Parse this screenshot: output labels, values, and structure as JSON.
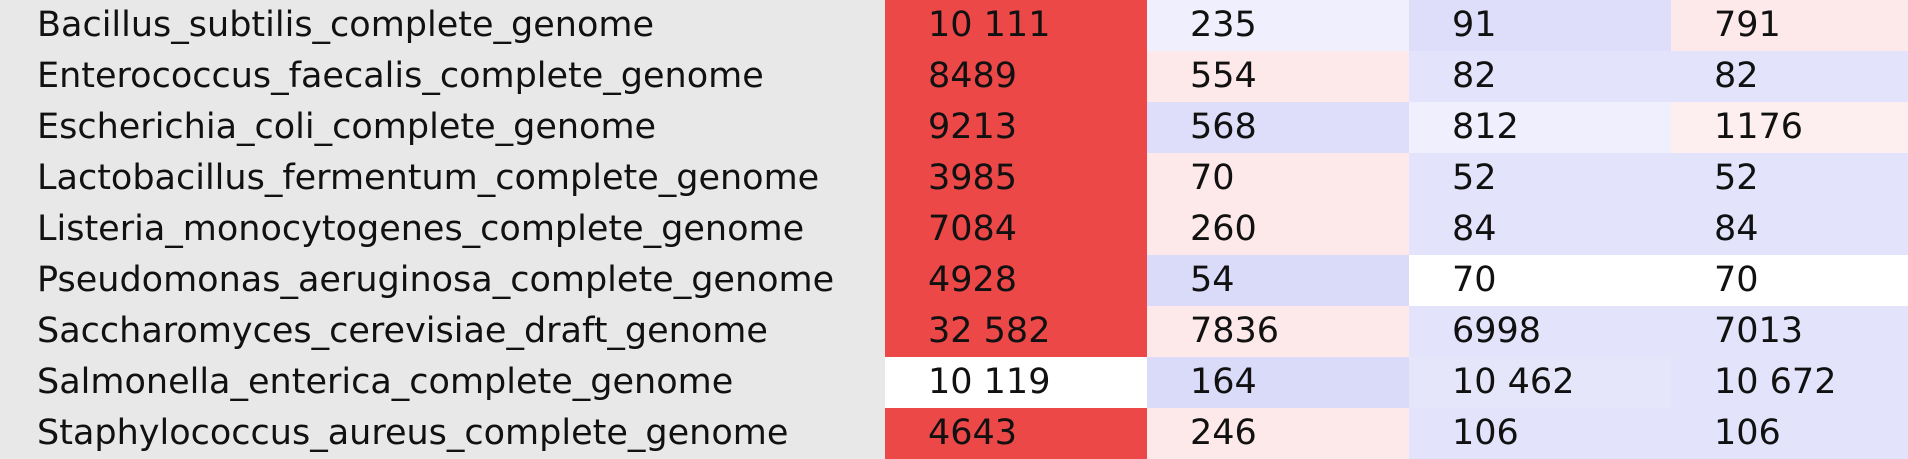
{
  "chart_data": {
    "type": "heatmap",
    "rows": [
      "Bacillus_subtilis_complete_genome",
      "Enterococcus_faecalis_complete_genome",
      "Escherichia_coli_complete_genome",
      "Lactobacillus_fermentum_complete_genome",
      "Listeria_monocytogenes_complete_genome",
      "Pseudomonas_aeruginosa_complete_genome",
      "Saccharomyces_cerevisiae_draft_genome",
      "Salmonella_enterica_complete_genome",
      "Staphylococcus_aureus_complete_genome"
    ],
    "values": [
      [
        10111,
        235,
        91,
        791
      ],
      [
        8489,
        554,
        82,
        82
      ],
      [
        9213,
        568,
        812,
        1176
      ],
      [
        3985,
        70,
        52,
        52
      ],
      [
        7084,
        260,
        84,
        84
      ],
      [
        4928,
        54,
        70,
        70
      ],
      [
        32582,
        7836,
        6998,
        7013
      ],
      [
        10119,
        164,
        10462,
        10672
      ],
      [
        4643,
        246,
        106,
        106
      ]
    ],
    "display_values": [
      [
        "10 111",
        "235",
        "91",
        "791"
      ],
      [
        "8489",
        "554",
        "82",
        "82"
      ],
      [
        "9213",
        "568",
        "812",
        "1176"
      ],
      [
        "3985",
        "70",
        "52",
        "52"
      ],
      [
        "7084",
        "260",
        "84",
        "84"
      ],
      [
        "4928",
        "54",
        "70",
        "70"
      ],
      [
        "32 582",
        "7836",
        "6998",
        "7013"
      ],
      [
        "10 119",
        "164",
        "10 462",
        "10 672"
      ],
      [
        "4643",
        "246",
        "106",
        "106"
      ]
    ],
    "cell_colors": [
      [
        "#ec4848",
        "#efeffd",
        "#dedefa",
        "#fde8ea"
      ],
      [
        "#ec4848",
        "#fde8ea",
        "#e3e3fb",
        "#e3e3fb"
      ],
      [
        "#ec4848",
        "#dedefa",
        "#efeffd",
        "#fdeeef"
      ],
      [
        "#ec4848",
        "#fde8ea",
        "#e3e3fb",
        "#e3e3fb"
      ],
      [
        "#ec4848",
        "#fde8ea",
        "#e3e3fb",
        "#e3e3fb"
      ],
      [
        "#ec4848",
        "#dadaf9",
        "#ffffff",
        "#ffffff"
      ],
      [
        "#ec4848",
        "#fde8ea",
        "#e3e3fb",
        "#e3e3fb"
      ],
      [
        "#ffffff",
        "#dadaf9",
        "#e6e6fb",
        "#e3e3fb"
      ],
      [
        "#ec4848",
        "#fde8ea",
        "#e3e3fb",
        "#e3e3fb"
      ]
    ],
    "label_background": "#e8e8e8",
    "text_color": "#111111"
  }
}
